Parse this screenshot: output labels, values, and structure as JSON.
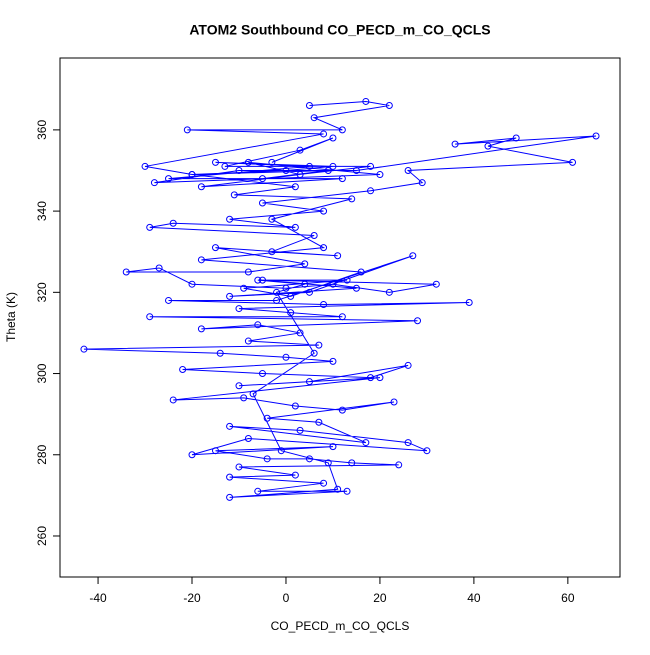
{
  "chart_data": {
    "type": "line",
    "title": "ATOM2 Southbound CO_PECD_m_CO_QCLS",
    "x_label": "CO_PECD_m_CO_QCLS",
    "y_label": "Theta (K)",
    "xlim": [
      -48.1,
      71.1
    ],
    "ylim": [
      249.9,
      377.7
    ],
    "xticks": [
      -40,
      -20,
      0,
      20,
      40,
      60
    ],
    "yticks": [
      260,
      280,
      300,
      320,
      340,
      360
    ],
    "series": [
      {
        "color": "#0000ff",
        "x": [
          5,
          17,
          22,
          6,
          12,
          -21,
          8,
          -30,
          -20,
          0,
          10,
          -15,
          5,
          -25,
          12,
          -18,
          3,
          -8,
          20,
          -28,
          -10,
          15,
          66,
          36,
          49,
          43,
          61,
          26,
          29,
          18,
          -5,
          8,
          -12,
          2,
          -24,
          -29,
          6,
          -3,
          11,
          -15,
          4,
          -8,
          -34,
          -27,
          -20,
          0,
          10,
          22,
          32,
          -5,
          15,
          -12,
          5,
          27,
          -2,
          -25,
          8,
          39,
          -10,
          1,
          12,
          -29,
          28,
          -18,
          -6,
          3,
          -8,
          7,
          -43,
          -14,
          0,
          10,
          -22,
          -5,
          18,
          26,
          5,
          -10,
          20,
          -24,
          -9,
          2,
          12,
          23,
          -4,
          7,
          17,
          -12,
          3,
          26,
          30,
          -8,
          -20,
          10,
          -15,
          -4,
          5,
          14,
          24,
          -10,
          2,
          -12,
          8,
          -6,
          13,
          -12,
          11,
          9,
          -1,
          -7,
          6,
          -2,
          4,
          -6,
          13,
          -9,
          1,
          16,
          -18,
          8,
          -3,
          14,
          -11,
          2,
          -20,
          9,
          -5,
          18,
          -13,
          3,
          10,
          -3
        ],
        "values": [
          366,
          367,
          366,
          363,
          360,
          360,
          359,
          351,
          349,
          350,
          351,
          352,
          351,
          348,
          348,
          346,
          349,
          352,
          349,
          347,
          350,
          350,
          358.5,
          356.5,
          358,
          356,
          352,
          350,
          347,
          345,
          342,
          340,
          338,
          336,
          337,
          336,
          334,
          330,
          329,
          331,
          327,
          325,
          325,
          326,
          322,
          321,
          322,
          320,
          322,
          323,
          321,
          319,
          320,
          329,
          318,
          318,
          317,
          317.5,
          316,
          315,
          314,
          314,
          313,
          311,
          312,
          310,
          308,
          307,
          306,
          305,
          304,
          303,
          301,
          300,
          299,
          302,
          298,
          297,
          299,
          293.5,
          294,
          292,
          291,
          293,
          289,
          288,
          283,
          287,
          286,
          283,
          281,
          284,
          280,
          282,
          281,
          279,
          279,
          278,
          277.5,
          277,
          275,
          274.5,
          273,
          271,
          271,
          269.5,
          271.5,
          278,
          281,
          295,
          305,
          320,
          322,
          323,
          323,
          321,
          319,
          325,
          328,
          331,
          338,
          343,
          344,
          346,
          349,
          350,
          348,
          351,
          351,
          355,
          358,
          352
        ]
      }
    ]
  }
}
